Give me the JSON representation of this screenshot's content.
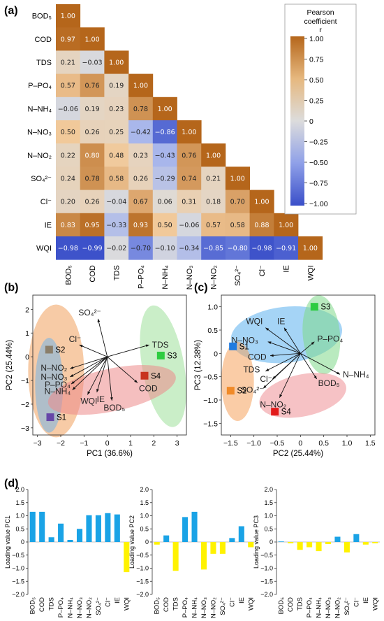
{
  "panels": {
    "a": "(a)",
    "b": "(b)",
    "c": "(c)",
    "d": "(d)"
  },
  "colors": {
    "positive": "#b5661b",
    "zero": "#dcdcdc",
    "negative": "#3a4fc9",
    "bar_pos": "#1aa3e6",
    "bar_neg": "#fff200"
  },
  "chart_data": [
    {
      "type": "heatmap",
      "title": "",
      "variables": [
        "BOD₅",
        "COD",
        "TDS",
        "P–PO₄",
        "N–NH₄",
        "N–NO₃",
        "N–NO₂",
        "SO₄²⁻",
        "Cl⁻",
        "IE",
        "WQI"
      ],
      "matrix": [
        [
          1.0
        ],
        [
          0.97,
          1.0
        ],
        [
          0.21,
          -0.03,
          1.0
        ],
        [
          0.57,
          0.76,
          0.19,
          1.0
        ],
        [
          -0.06,
          0.19,
          0.23,
          0.78,
          1.0
        ],
        [
          0.5,
          0.26,
          0.25,
          -0.42,
          -0.86,
          1.0
        ],
        [
          0.22,
          0.8,
          0.48,
          0.23,
          -0.43,
          0.76,
          1.0
        ],
        [
          0.24,
          0.78,
          0.58,
          0.26,
          -0.29,
          0.74,
          0.21,
          1.0
        ],
        [
          0.2,
          0.26,
          -0.04,
          0.67,
          0.06,
          0.31,
          0.18,
          0.7,
          1.0
        ],
        [
          0.83,
          0.95,
          -0.33,
          0.93,
          0.5,
          -0.06,
          0.57,
          0.58,
          0.88,
          1.0
        ],
        [
          -0.98,
          -0.99,
          -0.02,
          -0.7,
          -0.1,
          -0.34,
          -0.85,
          -0.8,
          -0.98,
          -0.91,
          1.0
        ]
      ],
      "colorbar": {
        "title_line1": "Pearson",
        "title_line2": "coefficient",
        "title_line3": "r",
        "ticks": [
          "1.00",
          "0.75",
          "0.50",
          "0.25",
          "0",
          "−0.25",
          "−0.50",
          "−0.75",
          "−1.00"
        ],
        "range": [
          -1,
          1
        ]
      }
    },
    {
      "type": "scatter",
      "xlabel": "PC1 (36.6%)",
      "ylabel": "PC2 (25.44%)",
      "xlim": [
        -3.2,
        3.4
      ],
      "ylim": [
        -3.3,
        2.6
      ],
      "xticks": [
        "−3",
        "−2",
        "−1",
        "0",
        "1",
        "2",
        "3"
      ],
      "yticks": [
        "2",
        "1",
        "0",
        "−1",
        "−2",
        "−3"
      ],
      "sites": [
        {
          "name": "S1",
          "x": -2.45,
          "y": -2.55,
          "color": "#6646a8"
        },
        {
          "name": "S2",
          "x": -2.5,
          "y": 0.3,
          "color": "#8a7e6a"
        },
        {
          "name": "S3",
          "x": 2.3,
          "y": 0.05,
          "color": "#2ecc40"
        },
        {
          "name": "S4",
          "x": 1.6,
          "y": -0.8,
          "color": "#c8331f"
        }
      ],
      "vectors": [
        {
          "label": "SO₄²⁻",
          "x": -0.4,
          "y": 1.6
        },
        {
          "label": "TDS",
          "x": 1.8,
          "y": 0.5
        },
        {
          "label": "Cl⁻",
          "x": -1.2,
          "y": 0.5
        },
        {
          "label": "COD",
          "x": 1.3,
          "y": -1.1
        },
        {
          "label": "BOD₅",
          "x": 0.2,
          "y": -1.85
        },
        {
          "label": "N–NO₂",
          "x": -1.6,
          "y": -0.5
        },
        {
          "label": "N–NO₃",
          "x": -1.6,
          "y": -0.85
        },
        {
          "label": "P–PO₄",
          "x": -1.55,
          "y": -1.15
        },
        {
          "label": "N–NH₄",
          "x": -1.5,
          "y": -1.4
        },
        {
          "label": "WQI",
          "x": -0.85,
          "y": -1.6
        },
        {
          "label": "IE",
          "x": -0.45,
          "y": -1.5
        }
      ]
    },
    {
      "type": "scatter",
      "xlabel": "PC2 (25.44%)",
      "ylabel": "PC3 (12.38%)",
      "xlim": [
        -1.7,
        1.6
      ],
      "ylim": [
        -1.75,
        1.25
      ],
      "xticks": [
        "−1.5",
        "−1.0",
        "−0.5",
        "0",
        "0.5",
        "1.0",
        "1.5"
      ],
      "yticks": [
        "1.0",
        "0.5",
        "0",
        "−0.5",
        "−1.0",
        "−1.5"
      ],
      "sites": [
        {
          "name": "S1",
          "x": -1.45,
          "y": 0.15,
          "color": "#1f7be0"
        },
        {
          "name": "S2",
          "x": -1.5,
          "y": -0.8,
          "color": "#f08a28"
        },
        {
          "name": "S3",
          "x": 0.3,
          "y": 1.0,
          "color": "#2ecc40"
        },
        {
          "name": "S4",
          "x": -0.55,
          "y": -1.25,
          "color": "#e21b1b"
        }
      ],
      "vectors": [
        {
          "label": "WQI",
          "x": -0.75,
          "y": 0.55
        },
        {
          "label": "IE",
          "x": -0.35,
          "y": 0.55
        },
        {
          "label": "N–NO₃",
          "x": -0.7,
          "y": 0.25
        },
        {
          "label": "P–PO₄",
          "x": 0.3,
          "y": 0.25
        },
        {
          "label": "N–NH₄",
          "x": 0.85,
          "y": -0.45
        },
        {
          "label": "BOD₅",
          "x": 0.35,
          "y": -0.55
        },
        {
          "label": "N–NO₂",
          "x": -0.45,
          "y": -0.95
        },
        {
          "label": "COD",
          "x": -0.65,
          "y": -0.05
        },
        {
          "label": "TDS",
          "x": -0.75,
          "y": -0.38
        },
        {
          "label": "Cl⁻",
          "x": -0.6,
          "y": -0.55
        },
        {
          "label": "SO₄²⁻",
          "x": -0.8,
          "y": -0.75
        }
      ]
    },
    {
      "type": "bar",
      "ylabel": "Loading value PC1",
      "ylim": [
        -2.0,
        2.0
      ],
      "yticks": [
        "2.0",
        "1.5",
        "1.0",
        "0.5",
        "0",
        "−0.5",
        "−1.0",
        "−1.5",
        "−2.0"
      ],
      "categories": [
        "BOD₅",
        "COD",
        "TDS",
        "P–PO₄",
        "N–NH₄",
        "N–NO₃",
        "N–NO₂",
        "SO₄²⁻",
        "Cl⁻",
        "IE",
        "WQI"
      ],
      "values": [
        1.15,
        1.15,
        0.18,
        0.7,
        0.08,
        0.5,
        1.02,
        1.02,
        1.1,
        1.05,
        -1.15
      ]
    },
    {
      "type": "bar",
      "ylabel": "Loading value PC2",
      "ylim": [
        -2.0,
        2.0
      ],
      "yticks": [
        "2.0",
        "1.5",
        "1.0",
        "0.5",
        "0",
        "−0.5",
        "−1.0",
        "−1.5",
        "−2.0"
      ],
      "categories": [
        "BOD₅",
        "COD",
        "TDS",
        "P–PO₄",
        "N–NH₄",
        "N–NO₃",
        "N–NO₂",
        "SO₄²⁻",
        "Cl⁻",
        "IE",
        "WQI"
      ],
      "values": [
        -0.1,
        0.25,
        -1.1,
        0.95,
        1.15,
        -1.05,
        -0.45,
        -0.45,
        0.15,
        0.6,
        -0.2
      ]
    },
    {
      "type": "bar",
      "ylabel": "Loading value PC3",
      "ylim": [
        -2.0,
        2.0
      ],
      "yticks": [
        "2.0",
        "1.5",
        "1.0",
        "0.5",
        "0",
        "−0.5",
        "−1.0",
        "−1.5",
        "−2.0"
      ],
      "categories": [
        "BOD₅",
        "COD",
        "TDS",
        "P–PO₄",
        "N–NH₄",
        "N–NO₃",
        "N–NO₂",
        "SO₄²⁻",
        "Cl⁻",
        "IE",
        "WQI"
      ],
      "values": [
        0.02,
        -0.05,
        -0.3,
        -0.2,
        -0.35,
        -0.08,
        0.2,
        -0.4,
        0.3,
        -0.1,
        -0.05
      ]
    }
  ]
}
